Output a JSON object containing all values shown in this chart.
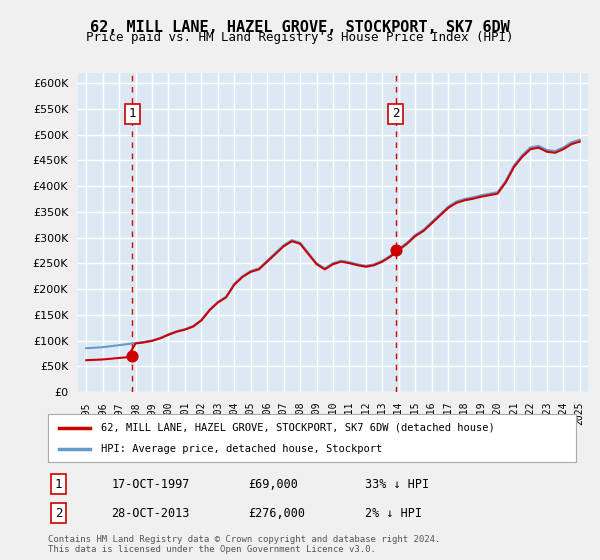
{
  "title": "62, MILL LANE, HAZEL GROVE, STOCKPORT, SK7 6DW",
  "subtitle": "Price paid vs. HM Land Registry's House Price Index (HPI)",
  "background_color": "#dce9f5",
  "plot_bg_color": "#dce9f5",
  "grid_color": "#ffffff",
  "ylim": [
    0,
    620000
  ],
  "yticks": [
    0,
    50000,
    100000,
    150000,
    200000,
    250000,
    300000,
    350000,
    400000,
    450000,
    500000,
    550000,
    600000
  ],
  "sale1_date": "1997-10-17",
  "sale1_price": 69000,
  "sale1_label": "1",
  "sale2_date": "2013-10-28",
  "sale2_price": 276000,
  "sale2_label": "2",
  "legend_entry1": "62, MILL LANE, HAZEL GROVE, STOCKPORT, SK7 6DW (detached house)",
  "legend_entry2": "HPI: Average price, detached house, Stockport",
  "table_row1": [
    "1",
    "17-OCT-1997",
    "£69,000",
    "33% ↓ HPI"
  ],
  "table_row2": [
    "2",
    "28-OCT-2013",
    "£276,000",
    "2% ↓ HPI"
  ],
  "footnote": "Contains HM Land Registry data © Crown copyright and database right 2024.\nThis data is licensed under the Open Government Licence v3.0.",
  "sale_color": "#cc0000",
  "hpi_color": "#6699cc",
  "vline_color": "#cc0000",
  "marker_color": "#cc0000"
}
